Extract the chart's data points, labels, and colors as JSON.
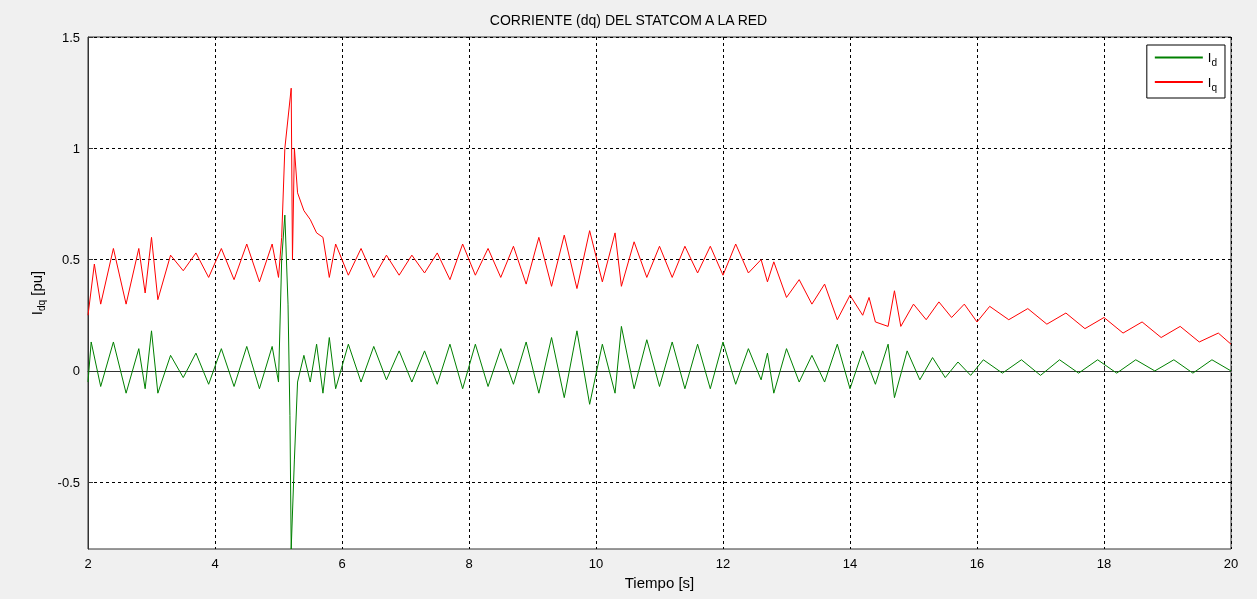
{
  "chart_data": {
    "type": "line",
    "title": "CORRIENTE (dq) DEL STATCOM A LA RED",
    "xlabel": "Tiempo [s]",
    "ylabel": "I$_{dq}$ [pu]",
    "xlim": [
      2,
      20
    ],
    "xticks": [
      2,
      4,
      6,
      8,
      10,
      12,
      14,
      16,
      18,
      20
    ],
    "ylim": [
      -0.8,
      1.5
    ],
    "yticks": [
      -0.5,
      0,
      0.5,
      1,
      1.5
    ],
    "grid": true,
    "legend": "top right",
    "marker": "none",
    "line_style": "solid",
    "series": [
      {
        "name": "I$_{d}$",
        "color": "#008000",
        "x": [
          2.0,
          2.05,
          2.2,
          2.4,
          2.6,
          2.8,
          2.9,
          3.0,
          3.1,
          3.3,
          3.5,
          3.7,
          3.9,
          4.1,
          4.3,
          4.5,
          4.7,
          4.9,
          5.0,
          5.05,
          5.1,
          5.15,
          5.18,
          5.2,
          5.25,
          5.3,
          5.4,
          5.5,
          5.6,
          5.7,
          5.8,
          5.9,
          6.1,
          6.3,
          6.5,
          6.7,
          6.9,
          7.1,
          7.3,
          7.5,
          7.7,
          7.9,
          8.1,
          8.3,
          8.5,
          8.7,
          8.9,
          9.1,
          9.3,
          9.5,
          9.7,
          9.9,
          10.1,
          10.3,
          10.4,
          10.6,
          10.8,
          11.0,
          11.2,
          11.4,
          11.6,
          11.8,
          12.0,
          12.2,
          12.4,
          12.6,
          12.7,
          12.8,
          13.0,
          13.2,
          13.4,
          13.6,
          13.8,
          14.0,
          14.2,
          14.4,
          14.6,
          14.7,
          14.9,
          15.1,
          15.3,
          15.5,
          15.7,
          15.9,
          16.1,
          16.4,
          16.7,
          17.0,
          17.3,
          17.6,
          17.9,
          18.2,
          18.5,
          18.8,
          19.1,
          19.4,
          19.7,
          20.0
        ],
        "values": [
          -0.05,
          0.13,
          -0.07,
          0.13,
          -0.1,
          0.1,
          -0.08,
          0.18,
          -0.1,
          0.07,
          -0.03,
          0.08,
          -0.06,
          0.1,
          -0.07,
          0.11,
          -0.08,
          0.11,
          -0.05,
          0.5,
          0.7,
          0.3,
          -0.2,
          -0.8,
          -0.4,
          -0.05,
          0.07,
          -0.05,
          0.12,
          -0.1,
          0.15,
          -0.08,
          0.12,
          -0.05,
          0.11,
          -0.04,
          0.09,
          -0.05,
          0.09,
          -0.06,
          0.12,
          -0.08,
          0.12,
          -0.07,
          0.1,
          -0.06,
          0.13,
          -0.1,
          0.15,
          -0.12,
          0.18,
          -0.15,
          0.12,
          -0.1,
          0.2,
          -0.08,
          0.14,
          -0.07,
          0.13,
          -0.08,
          0.12,
          -0.08,
          0.13,
          -0.06,
          0.1,
          -0.04,
          0.08,
          -0.1,
          0.1,
          -0.05,
          0.07,
          -0.05,
          0.12,
          -0.08,
          0.09,
          -0.06,
          0.12,
          -0.12,
          0.09,
          -0.04,
          0.06,
          -0.03,
          0.04,
          -0.02,
          0.05,
          -0.01,
          0.05,
          -0.02,
          0.05,
          -0.01,
          0.05,
          -0.01,
          0.05,
          0.0,
          0.05,
          -0.01,
          0.05,
          0.0
        ]
      },
      {
        "name": "I$_{q}$",
        "color": "#ff0000",
        "x": [
          2.0,
          2.1,
          2.2,
          2.4,
          2.6,
          2.8,
          2.9,
          3.0,
          3.1,
          3.3,
          3.5,
          3.7,
          3.9,
          4.1,
          4.3,
          4.5,
          4.7,
          4.9,
          5.0,
          5.05,
          5.1,
          5.2,
          5.22,
          5.25,
          5.3,
          5.4,
          5.5,
          5.6,
          5.7,
          5.8,
          5.9,
          6.1,
          6.3,
          6.5,
          6.7,
          6.9,
          7.1,
          7.3,
          7.5,
          7.7,
          7.9,
          8.1,
          8.3,
          8.5,
          8.7,
          8.9,
          9.1,
          9.3,
          9.5,
          9.7,
          9.9,
          10.1,
          10.3,
          10.4,
          10.6,
          10.8,
          11.0,
          11.2,
          11.4,
          11.6,
          11.8,
          12.0,
          12.2,
          12.4,
          12.6,
          12.7,
          12.8,
          13.0,
          13.2,
          13.4,
          13.6,
          13.8,
          14.0,
          14.2,
          14.3,
          14.4,
          14.6,
          14.7,
          14.8,
          15.0,
          15.2,
          15.4,
          15.6,
          15.8,
          16.0,
          16.2,
          16.5,
          16.8,
          17.1,
          17.4,
          17.7,
          18.0,
          18.3,
          18.6,
          18.9,
          19.2,
          19.5,
          19.8,
          20.0
        ],
        "values": [
          0.25,
          0.48,
          0.3,
          0.55,
          0.3,
          0.55,
          0.35,
          0.6,
          0.32,
          0.52,
          0.45,
          0.53,
          0.42,
          0.55,
          0.41,
          0.57,
          0.4,
          0.57,
          0.42,
          0.6,
          1.0,
          1.27,
          0.5,
          1.0,
          0.8,
          0.72,
          0.68,
          0.62,
          0.6,
          0.42,
          0.57,
          0.43,
          0.55,
          0.42,
          0.52,
          0.43,
          0.52,
          0.44,
          0.53,
          0.41,
          0.57,
          0.43,
          0.55,
          0.42,
          0.56,
          0.39,
          0.6,
          0.38,
          0.61,
          0.37,
          0.63,
          0.4,
          0.62,
          0.38,
          0.58,
          0.42,
          0.56,
          0.42,
          0.56,
          0.44,
          0.56,
          0.43,
          0.57,
          0.44,
          0.5,
          0.4,
          0.49,
          0.33,
          0.41,
          0.3,
          0.39,
          0.23,
          0.34,
          0.25,
          0.33,
          0.22,
          0.2,
          0.36,
          0.2,
          0.3,
          0.23,
          0.31,
          0.24,
          0.3,
          0.22,
          0.29,
          0.23,
          0.28,
          0.21,
          0.26,
          0.19,
          0.24,
          0.17,
          0.22,
          0.15,
          0.2,
          0.13,
          0.17,
          0.12
        ]
      }
    ]
  }
}
